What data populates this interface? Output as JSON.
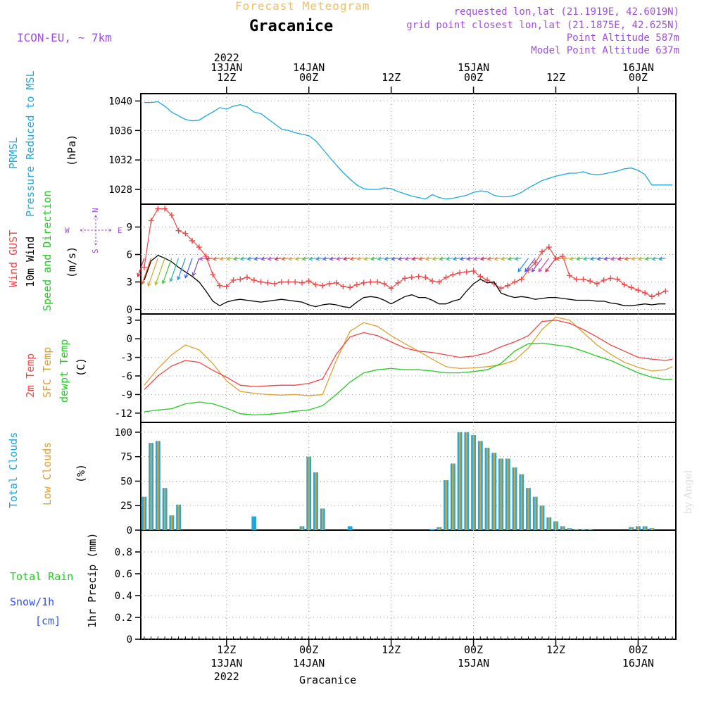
{
  "header": {
    "title": "Forecast Meteogram",
    "station": "Gracanice",
    "model": "ICON-EU, ~ 7km",
    "requested": "requested lon,lat (21.1919E, 42.6019N)",
    "gridpoint": "grid point closest lon,lat (21.1875E, 42.625N)",
    "point_alt": "Point Altitude 587m",
    "model_alt": "Model Point Altitude 637m",
    "footer": "Gracanice",
    "credit": "by Angel"
  },
  "colors": {
    "pressure": "#1ea8e0",
    "gust": "#f04848",
    "wind": "#000000",
    "direction": "#22cc22",
    "temp": "#f04848",
    "sfc": "#e0a030",
    "dewpt": "#22cc22",
    "total_clouds": "#1ea8e0",
    "low_clouds": "#e0a030",
    "rain": "#22cc22",
    "snow": "#3050f0",
    "info": "#a050e0",
    "title": "#f0c060"
  },
  "time_axis": {
    "top_ticks": [
      {
        "t": 12,
        "lines": [
          "2022",
          "13JAN",
          "12Z"
        ]
      },
      {
        "t": 24,
        "lines": [
          "14JAN",
          "00Z"
        ]
      },
      {
        "t": 36,
        "lines": [
          "12Z"
        ]
      },
      {
        "t": 48,
        "lines": [
          "15JAN",
          "00Z"
        ]
      },
      {
        "t": 60,
        "lines": [
          "12Z"
        ]
      },
      {
        "t": 72,
        "lines": [
          "16JAN",
          "00Z"
        ]
      }
    ],
    "bottom_ticks": [
      {
        "t": 12,
        "lines": [
          "12Z",
          "13JAN",
          "2022"
        ]
      },
      {
        "t": 24,
        "lines": [
          "00Z",
          "14JAN"
        ]
      },
      {
        "t": 36,
        "lines": [
          "12Z"
        ]
      },
      {
        "t": 48,
        "lines": [
          "00Z",
          "15JAN"
        ]
      },
      {
        "t": 60,
        "lines": [
          "12Z"
        ]
      },
      {
        "t": 72,
        "lines": [
          "00Z",
          "16JAN"
        ]
      }
    ]
  },
  "chart_data": [
    {
      "type": "line",
      "panel": "pressure",
      "labels": [
        "PRMSL",
        "Pressure Reduced to MSL",
        "(hPa)"
      ],
      "ylim": [
        1026,
        1041
      ],
      "yticks": [
        1028,
        1032,
        1036,
        1040
      ],
      "series": [
        {
          "name": "PRMSL",
          "x": [
            0,
            1,
            2,
            3,
            4,
            5,
            6,
            7,
            8,
            9,
            10,
            11,
            12,
            13,
            14,
            15,
            16,
            17,
            18,
            19,
            20,
            21,
            22,
            23,
            24,
            25,
            26,
            27,
            28,
            29,
            30,
            31,
            32,
            33,
            34,
            35,
            36,
            37,
            38,
            39,
            40,
            41,
            42,
            43,
            44,
            45,
            46,
            47,
            48,
            49,
            50,
            51,
            52,
            53,
            54,
            55,
            56,
            57,
            58,
            59,
            60,
            61,
            62,
            63,
            64,
            65,
            66,
            67,
            68,
            69,
            70,
            71,
            72,
            73,
            74,
            75,
            76,
            77
          ],
          "y": [
            1039.8,
            1039.8,
            1039.9,
            1039.3,
            1038.5,
            1038.0,
            1037.5,
            1037.3,
            1037.4,
            1038.0,
            1038.5,
            1039.1,
            1038.9,
            1039.3,
            1039.5,
            1039.2,
            1038.5,
            1038.3,
            1037.6,
            1036.9,
            1036.2,
            1036.0,
            1035.7,
            1035.5,
            1035.3,
            1034.6,
            1033.5,
            1032.4,
            1031.3,
            1030.3,
            1029.4,
            1028.6,
            1028.1,
            1028.0,
            1028.0,
            1028.2,
            1028.1,
            1027.7,
            1027.4,
            1027.1,
            1026.9,
            1026.7,
            1027.3,
            1026.9,
            1026.7,
            1026.8,
            1027.0,
            1027.2,
            1027.6,
            1027.8,
            1027.7,
            1027.2,
            1027.0,
            1027.0,
            1027.2,
            1027.6,
            1028.2,
            1028.7,
            1029.2,
            1029.5,
            1029.8,
            1030.0,
            1030.2,
            1030.2,
            1030.4,
            1030.1,
            1030.0,
            1030.1,
            1030.3,
            1030.5,
            1030.8,
            1030.9,
            1030.6,
            1030.0,
            1028.6,
            1028.6,
            1028.6,
            1028.6
          ]
        }
      ]
    },
    {
      "type": "line",
      "panel": "wind",
      "labels": [
        "Wind GUST",
        "10m Wind",
        "Speed and Direction",
        "(m/s)"
      ],
      "compass": {
        "n": "N",
        "s": "S",
        "w": "W",
        "e": "E"
      },
      "ylim": [
        -0.5,
        11.5
      ],
      "yticks": [
        0,
        3,
        6,
        9
      ],
      "series": [
        {
          "name": "Wind GUST",
          "x": [
            0,
            1,
            2,
            3,
            4,
            5,
            6,
            7,
            8,
            9,
            10,
            11,
            12,
            13,
            14,
            15,
            16,
            17,
            18,
            19,
            20,
            21,
            22,
            23,
            24,
            25,
            26,
            27,
            28,
            29,
            30,
            31,
            32,
            33,
            34,
            35,
            36,
            37,
            38,
            39,
            40,
            41,
            42,
            43,
            44,
            45,
            46,
            47,
            48,
            49,
            50,
            51,
            52,
            53,
            54,
            55,
            56,
            57,
            58,
            59,
            60,
            61,
            62,
            63,
            64,
            65,
            66,
            67,
            68,
            69,
            70,
            71,
            72,
            73,
            74,
            75,
            76
          ],
          "y": [
            4.6,
            9.7,
            11.0,
            11.0,
            10.3,
            8.6,
            8.3,
            7.5,
            6.8,
            5.8,
            3.8,
            2.6,
            2.5,
            3.2,
            3.3,
            3.5,
            3.2,
            3.0,
            2.9,
            2.8,
            3.0,
            3.0,
            3.0,
            2.9,
            3.1,
            2.7,
            2.6,
            2.8,
            2.9,
            2.5,
            2.4,
            2.7,
            2.9,
            3.0,
            3.0,
            2.8,
            2.3,
            2.9,
            3.4,
            3.5,
            3.6,
            3.5,
            3.1,
            3.0,
            3.5,
            3.8,
            4.0,
            4.1,
            4.2,
            3.6,
            3.2,
            2.8,
            2.3,
            2.6,
            3.0,
            3.3,
            4.3,
            5.1,
            6.3,
            6.8,
            5.6,
            5.8,
            3.7,
            3.3,
            3.3,
            3.1,
            2.8,
            3.2,
            3.4,
            3.3,
            2.7,
            2.4,
            2.1,
            1.8,
            1.4,
            1.7,
            2.0
          ]
        },
        {
          "name": "10m Wind",
          "x": [
            0,
            1,
            2,
            3,
            4,
            5,
            6,
            7,
            8,
            9,
            10,
            11,
            12,
            13,
            14,
            15,
            16,
            17,
            18,
            19,
            20,
            21,
            22,
            23,
            24,
            25,
            26,
            27,
            28,
            29,
            30,
            31,
            32,
            33,
            34,
            35,
            36,
            37,
            38,
            39,
            40,
            41,
            42,
            43,
            44,
            45,
            46,
            47,
            48,
            49,
            50,
            51,
            52,
            53,
            54,
            55,
            56,
            57,
            58,
            59,
            60,
            61,
            62,
            63,
            64,
            65,
            66,
            67,
            68,
            69,
            70,
            71,
            72,
            73,
            74,
            75,
            76
          ],
          "y": [
            3.2,
            5.3,
            5.9,
            5.6,
            5.2,
            4.6,
            4.1,
            3.6,
            3.0,
            2.0,
            0.9,
            0.4,
            0.8,
            1.0,
            1.1,
            1.0,
            0.9,
            0.8,
            0.9,
            1.0,
            1.1,
            1.0,
            0.9,
            0.8,
            0.5,
            0.3,
            0.5,
            0.6,
            0.5,
            0.3,
            0.2,
            0.8,
            1.3,
            1.4,
            1.3,
            1.0,
            0.6,
            1.0,
            1.4,
            1.6,
            1.3,
            1.3,
            1.0,
            0.6,
            0.6,
            0.9,
            1.1,
            2.0,
            2.8,
            3.3,
            2.9,
            3.0,
            1.8,
            1.5,
            1.3,
            1.4,
            1.3,
            1.1,
            1.2,
            1.3,
            1.3,
            1.2,
            1.1,
            1.0,
            1.0,
            1.0,
            0.9,
            0.9,
            0.7,
            0.6,
            0.4,
            0.4,
            0.5,
            0.6,
            0.5,
            0.6,
            0.6
          ]
        }
      ],
      "direction_colors": [
        "#e0204a",
        "#f06020",
        "#e0a030",
        "#a0c020",
        "#40c040",
        "#20c0a0",
        "#2090e0",
        "#4060f0",
        "#8040e0",
        "#c040d0"
      ]
    },
    {
      "type": "line",
      "panel": "temperature",
      "labels": [
        "2m Temp",
        "SFC Temp",
        "dewpt Temp",
        "(C)"
      ],
      "ylim": [
        -13.5,
        4
      ],
      "yticks": [
        -12,
        -9,
        -6,
        -3,
        0,
        3
      ],
      "series": [
        {
          "name": "2m Temp",
          "x": [
            0,
            2,
            4,
            6,
            8,
            10,
            12,
            14,
            16,
            18,
            20,
            22,
            24,
            26,
            28,
            30,
            32,
            34,
            36,
            38,
            40,
            42,
            44,
            46,
            48,
            50,
            52,
            54,
            56,
            58,
            60,
            62,
            64,
            66,
            68,
            70,
            72,
            74,
            76,
            77
          ],
          "y": [
            -8.2,
            -6.0,
            -4.4,
            -3.5,
            -3.8,
            -5.1,
            -6.2,
            -7.5,
            -7.7,
            -7.6,
            -7.5,
            -7.5,
            -7.2,
            -6.5,
            -2.5,
            0.3,
            1.0,
            0.5,
            -0.5,
            -1.5,
            -2.0,
            -2.2,
            -2.6,
            -3.0,
            -2.8,
            -2.3,
            -1.3,
            -0.5,
            0.5,
            2.8,
            3.0,
            2.5,
            1.5,
            0.3,
            -1.0,
            -2.0,
            -3.0,
            -3.3,
            -3.5,
            -3.3
          ]
        },
        {
          "name": "SFC Temp",
          "x": [
            0,
            2,
            4,
            6,
            8,
            10,
            12,
            14,
            16,
            18,
            20,
            22,
            24,
            26,
            28,
            30,
            32,
            34,
            36,
            38,
            40,
            42,
            44,
            46,
            48,
            50,
            52,
            54,
            56,
            58,
            60,
            62,
            64,
            66,
            68,
            70,
            72,
            74,
            76,
            77
          ],
          "y": [
            -7.5,
            -4.8,
            -2.6,
            -1.0,
            -1.8,
            -4.0,
            -6.8,
            -8.5,
            -8.8,
            -9.0,
            -9.1,
            -9.0,
            -9.2,
            -9.0,
            -3.5,
            1.2,
            2.6,
            2.0,
            0.5,
            -0.8,
            -2.0,
            -3.3,
            -4.5,
            -4.8,
            -4.7,
            -4.5,
            -4.2,
            -3.5,
            -1.5,
            1.5,
            3.5,
            3.0,
            1.0,
            -1.0,
            -2.5,
            -3.8,
            -4.6,
            -5.2,
            -5.0,
            -4.5
          ]
        },
        {
          "name": "dewpt Temp",
          "x": [
            0,
            2,
            4,
            6,
            8,
            10,
            12,
            14,
            16,
            18,
            20,
            22,
            24,
            26,
            28,
            30,
            32,
            34,
            36,
            38,
            40,
            42,
            44,
            46,
            48,
            50,
            52,
            54,
            56,
            58,
            60,
            62,
            64,
            66,
            68,
            70,
            72,
            74,
            76,
            77
          ],
          "y": [
            -11.8,
            -11.5,
            -11.3,
            -10.5,
            -10.2,
            -10.5,
            -11.2,
            -12.1,
            -12.3,
            -12.2,
            -12.0,
            -11.7,
            -11.5,
            -10.8,
            -9.0,
            -7.0,
            -5.5,
            -5.0,
            -4.8,
            -5.0,
            -5.0,
            -5.2,
            -5.5,
            -5.5,
            -5.3,
            -5.0,
            -4.0,
            -2.0,
            -0.8,
            -0.7,
            -1.0,
            -1.3,
            -2.0,
            -2.8,
            -3.5,
            -4.5,
            -5.5,
            -6.2,
            -6.6,
            -6.5
          ]
        }
      ]
    },
    {
      "type": "bar",
      "panel": "clouds",
      "labels": [
        "Total Clouds",
        "Low Clouds",
        "(%)"
      ],
      "ylim": [
        0,
        110
      ],
      "yticks": [
        0,
        25,
        50,
        75,
        100
      ],
      "series": [
        {
          "name": "Total Clouds",
          "x": [
            0,
            1,
            2,
            3,
            4,
            5,
            16,
            23,
            24,
            25,
            26,
            30,
            42,
            43,
            44,
            45,
            46,
            47,
            48,
            49,
            50,
            51,
            52,
            53,
            54,
            55,
            56,
            57,
            58,
            59,
            60,
            61,
            62,
            63,
            64,
            65,
            71,
            72,
            73,
            74
          ],
          "y": [
            34,
            89,
            91,
            43,
            15,
            26,
            14,
            4,
            75,
            59,
            22,
            4,
            1,
            3,
            51,
            68,
            100,
            100,
            97,
            91,
            84,
            79,
            73,
            73,
            64,
            57,
            43,
            34,
            25,
            13,
            9,
            4,
            2,
            1,
            1,
            1,
            3,
            4,
            4,
            2
          ]
        },
        {
          "name": "Low Clouds",
          "x": [
            0,
            1,
            2,
            3,
            4,
            5,
            16,
            23,
            24,
            25,
            26,
            30,
            42,
            43,
            44,
            45,
            46,
            47,
            48,
            49,
            50,
            51,
            52,
            53,
            54,
            55,
            56,
            57,
            58,
            59,
            60,
            61,
            62,
            63,
            64,
            65,
            71,
            72,
            73,
            74
          ],
          "y": [
            34,
            89,
            91,
            43,
            15,
            26,
            0,
            4,
            75,
            59,
            22,
            0,
            0,
            3,
            51,
            68,
            100,
            100,
            97,
            91,
            84,
            79,
            73,
            73,
            64,
            57,
            43,
            34,
            25,
            13,
            9,
            4,
            2,
            1,
            1,
            1,
            3,
            4,
            4,
            2
          ]
        }
      ]
    },
    {
      "type": "bar",
      "panel": "precip",
      "labels": [
        "Total Rain",
        "Snow/1h",
        "[cm]",
        "1hr Precip (mm)"
      ],
      "ylim": [
        0,
        1
      ],
      "yticks": [
        0,
        0.2,
        0.4,
        0.6,
        0.8
      ],
      "series": [
        {
          "name": "Total Rain",
          "x": [],
          "y": []
        },
        {
          "name": "Snow/1h",
          "x": [],
          "y": []
        }
      ]
    }
  ]
}
